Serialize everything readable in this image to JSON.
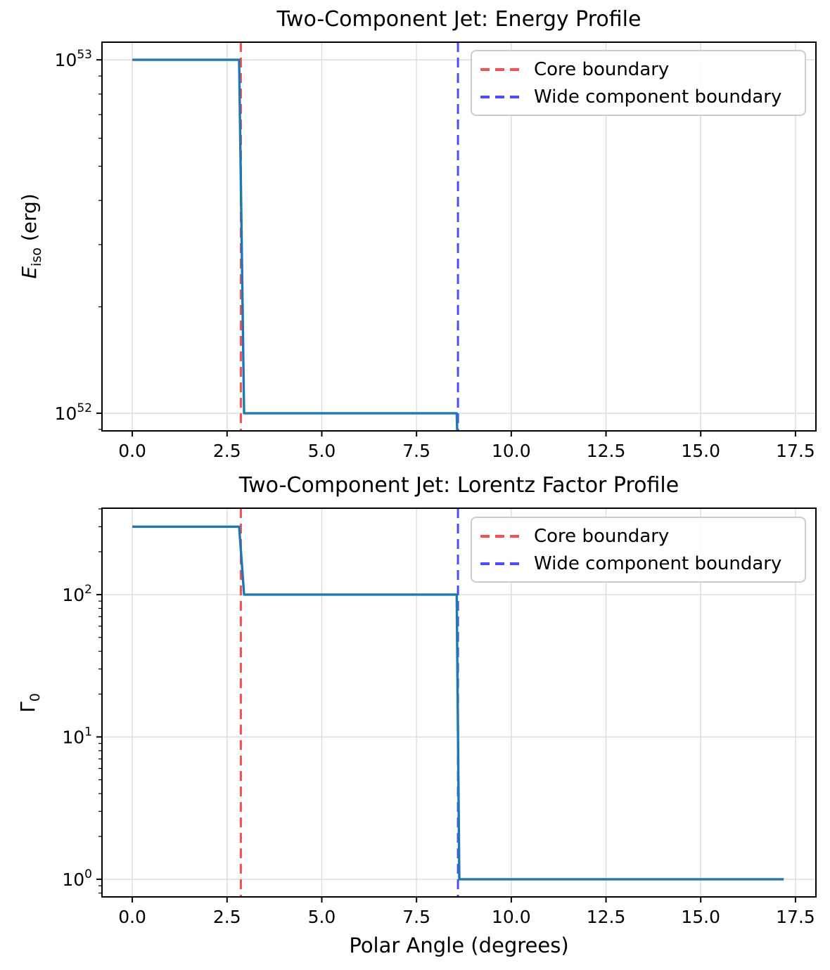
{
  "figure": {
    "background": "#ffffff",
    "text_color": "#000000",
    "grid_color": "#dcdcdc"
  },
  "chart_data": [
    {
      "name": "energy-profile-chart",
      "type": "line",
      "subtype": "step",
      "title": "Two-Component Jet: Energy Profile",
      "xlabel": "",
      "ylabel": "E_iso (erg)",
      "ylabel_parts": {
        "main": "E",
        "sub": "iso",
        "rest": " (erg)"
      },
      "x_unit": "degrees",
      "y_scale": "log",
      "grid": true,
      "legend_position": "upper right",
      "xlim": [
        -0.8,
        18.04
      ],
      "ylim_log10": [
        51.95,
        53.05
      ],
      "xticks": [
        {
          "value": 0,
          "label": "0.0"
        },
        {
          "value": 2.5,
          "label": "2.5"
        },
        {
          "value": 5,
          "label": "5.0"
        },
        {
          "value": 7.5,
          "label": "7.5"
        },
        {
          "value": 10,
          "label": "10.0"
        },
        {
          "value": 12.5,
          "label": "12.5"
        },
        {
          "value": 15,
          "label": "15.0"
        },
        {
          "value": 17.5,
          "label": "17.5"
        }
      ],
      "yticks": [
        {
          "exp": 53,
          "label": "10^53"
        },
        {
          "exp": 52,
          "label": "10^52"
        }
      ],
      "series": {
        "name": "energy-profile-line",
        "color": "#1f77b4",
        "levels": [
          {
            "theta_range_deg": [
              0,
              2.86
            ],
            "value_erg": 1e+53
          },
          {
            "theta_range_deg": [
              2.86,
              8.59
            ],
            "value_erg": 1e+52
          }
        ],
        "drops_below_axis_after_deg": 8.59,
        "points": [
          [
            0,
            1e+53
          ],
          [
            2.82,
            1e+53
          ],
          [
            2.95,
            1e+52
          ],
          [
            8.56,
            1e+52
          ],
          [
            8.63,
            5.5e+51
          ]
        ]
      },
      "vlines": [
        {
          "name": "core-boundary-line",
          "x_deg": 2.865,
          "color": "#ff4d4d",
          "style": "dashed",
          "label": "Core boundary"
        },
        {
          "name": "wide-boundary-line",
          "x_deg": 8.594,
          "color": "#4c4cff",
          "style": "dashed",
          "label": "Wide component boundary"
        }
      ]
    },
    {
      "name": "lorentz-factor-chart",
      "type": "line",
      "subtype": "step",
      "title": "Two-Component Jet: Lorentz Factor Profile",
      "xlabel": "Polar Angle (degrees)",
      "ylabel": "Γ_0",
      "ylabel_parts": {
        "main": "Γ",
        "sub": "0",
        "rest": ""
      },
      "x_unit": "degrees",
      "y_scale": "log",
      "grid": true,
      "legend_position": "upper right",
      "xlim": [
        -0.8,
        18.04
      ],
      "ylim_log10": [
        -0.124,
        2.607
      ],
      "xticks": [
        {
          "value": 0,
          "label": "0.0"
        },
        {
          "value": 2.5,
          "label": "2.5"
        },
        {
          "value": 5,
          "label": "5.0"
        },
        {
          "value": 7.5,
          "label": "7.5"
        },
        {
          "value": 10,
          "label": "10.0"
        },
        {
          "value": 12.5,
          "label": "12.5"
        },
        {
          "value": 15,
          "label": "15.0"
        },
        {
          "value": 17.5,
          "label": "17.5"
        }
      ],
      "yticks": [
        {
          "exp": 2,
          "label": "10^2"
        },
        {
          "exp": 1,
          "label": "10^1"
        },
        {
          "exp": 0,
          "label": "10^0"
        }
      ],
      "series": {
        "name": "lorentz-factor-line",
        "color": "#1f77b4",
        "levels": [
          {
            "theta_range_deg": [
              0,
              2.86
            ],
            "gamma": 300
          },
          {
            "theta_range_deg": [
              2.86,
              8.59
            ],
            "gamma": 100
          },
          {
            "theta_range_deg": [
              8.59,
              17.19
            ],
            "gamma": 1
          }
        ],
        "points": [
          [
            0,
            300
          ],
          [
            2.82,
            300
          ],
          [
            2.95,
            100
          ],
          [
            8.56,
            100
          ],
          [
            8.63,
            1
          ],
          [
            17.19,
            1
          ]
        ]
      },
      "vlines": [
        {
          "name": "core-boundary-line",
          "x_deg": 2.865,
          "color": "#ff4d4d",
          "style": "dashed",
          "label": "Core boundary"
        },
        {
          "name": "wide-boundary-line",
          "x_deg": 8.594,
          "color": "#4c4cff",
          "style": "dashed",
          "label": "Wide component boundary"
        }
      ]
    }
  ]
}
